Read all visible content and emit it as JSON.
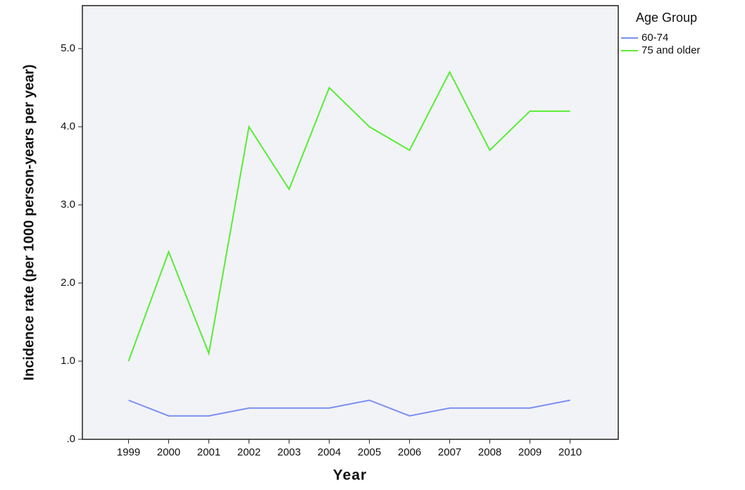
{
  "chart_data": {
    "type": "line",
    "xlabel": "Year",
    "ylabel": "Incidence rate (per 1000 person-years per year)",
    "legend_title": "Age Group",
    "x": [
      1999,
      2000,
      2001,
      2002,
      2003,
      2004,
      2005,
      2006,
      2007,
      2008,
      2009,
      2010
    ],
    "series": [
      {
        "name": "60-74",
        "color": "#7b8ff0",
        "values": [
          0.5,
          0.3,
          0.3,
          0.4,
          0.4,
          0.4,
          0.5,
          0.3,
          0.4,
          0.4,
          0.4,
          0.5
        ]
      },
      {
        "name": "75 and older",
        "color": "#55ee33",
        "values": [
          1.0,
          2.4,
          1.1,
          4.0,
          3.2,
          4.5,
          4.0,
          3.7,
          4.7,
          3.7,
          4.2,
          4.2
        ]
      }
    ],
    "xlim": [
      1997.85,
      2011.2
    ],
    "xticks": [
      1999,
      2000,
      2001,
      2002,
      2003,
      2004,
      2005,
      2006,
      2007,
      2008,
      2009,
      2010
    ],
    "ylim": [
      0,
      5.55
    ],
    "yticks": [
      {
        "value": 0,
        "label": ".0"
      },
      {
        "value": 1,
        "label": "1.0"
      },
      {
        "value": 2,
        "label": "2.0"
      },
      {
        "value": 3,
        "label": "3.0"
      },
      {
        "value": 4,
        "label": "4.0"
      },
      {
        "value": 5,
        "label": "5.0"
      }
    ],
    "grid": false,
    "legend": "top-right"
  }
}
